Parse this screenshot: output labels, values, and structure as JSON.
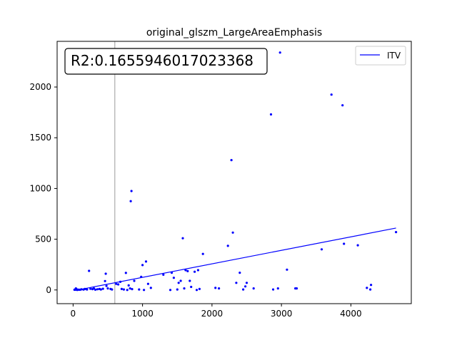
{
  "chart_data": {
    "type": "scatter",
    "title": "original_glszm_LargeAreaEmphasis",
    "xlabel": "",
    "ylabel": "",
    "xlim": [
      -230,
      4870
    ],
    "ylim": [
      -135,
      2450
    ],
    "x_ticks": [
      0,
      1000,
      2000,
      3000,
      4000
    ],
    "y_ticks": [
      0,
      500,
      1000,
      1500,
      2000
    ],
    "grid": false,
    "legend": {
      "placement": "top-right",
      "entries": [
        {
          "label": "ITV",
          "color": "#0000ff"
        }
      ]
    },
    "annotation": "R2:0.1655946017023368",
    "vertical_line": {
      "x": 600,
      "color": "#bbbbbb"
    },
    "fit_line": {
      "name": "ITV",
      "x": [
        30,
        4650
      ],
      "y": [
        -5,
        610
      ],
      "color": "#0000ff"
    },
    "series": [
      {
        "name": "",
        "color": "#0000ff",
        "points": [
          [
            20,
            2
          ],
          [
            30,
            5
          ],
          [
            40,
            15
          ],
          [
            50,
            8
          ],
          [
            60,
            0
          ],
          [
            80,
            3
          ],
          [
            100,
            2
          ],
          [
            120,
            6
          ],
          [
            150,
            4
          ],
          [
            170,
            10
          ],
          [
            200,
            5
          ],
          [
            230,
            188
          ],
          [
            250,
            12
          ],
          [
            280,
            8
          ],
          [
            300,
            15
          ],
          [
            320,
            3
          ],
          [
            350,
            7
          ],
          [
            380,
            10
          ],
          [
            400,
            5
          ],
          [
            430,
            12
          ],
          [
            460,
            88
          ],
          [
            470,
            160
          ],
          [
            480,
            40
          ],
          [
            500,
            15
          ],
          [
            540,
            10
          ],
          [
            560,
            5
          ],
          [
            620,
            60
          ],
          [
            650,
            55
          ],
          [
            680,
            80
          ],
          [
            700,
            10
          ],
          [
            730,
            5
          ],
          [
            760,
            168
          ],
          [
            780,
            0
          ],
          [
            800,
            45
          ],
          [
            820,
            15
          ],
          [
            830,
            875
          ],
          [
            840,
            975
          ],
          [
            850,
            8
          ],
          [
            880,
            90
          ],
          [
            950,
            5
          ],
          [
            980,
            130
          ],
          [
            1000,
            245
          ],
          [
            1020,
            0
          ],
          [
            1050,
            280
          ],
          [
            1080,
            60
          ],
          [
            1120,
            20
          ],
          [
            1300,
            150
          ],
          [
            1400,
            0
          ],
          [
            1420,
            170
          ],
          [
            1450,
            120
          ],
          [
            1500,
            5
          ],
          [
            1520,
            70
          ],
          [
            1550,
            90
          ],
          [
            1580,
            510
          ],
          [
            1600,
            15
          ],
          [
            1620,
            195
          ],
          [
            1650,
            185
          ],
          [
            1680,
            90
          ],
          [
            1700,
            30
          ],
          [
            1750,
            180
          ],
          [
            1780,
            0
          ],
          [
            1800,
            195
          ],
          [
            1820,
            10
          ],
          [
            1870,
            355
          ],
          [
            2050,
            20
          ],
          [
            2100,
            15
          ],
          [
            2230,
            435
          ],
          [
            2280,
            1280
          ],
          [
            2300,
            565
          ],
          [
            2350,
            70
          ],
          [
            2400,
            170
          ],
          [
            2450,
            5
          ],
          [
            2480,
            35
          ],
          [
            2500,
            70
          ],
          [
            2600,
            15
          ],
          [
            2850,
            1730
          ],
          [
            2880,
            5
          ],
          [
            2950,
            15
          ],
          [
            2980,
            2340
          ],
          [
            3080,
            200
          ],
          [
            3200,
            15
          ],
          [
            3220,
            15
          ],
          [
            3580,
            400
          ],
          [
            3720,
            1925
          ],
          [
            3880,
            1820
          ],
          [
            3900,
            455
          ],
          [
            4100,
            440
          ],
          [
            4230,
            20
          ],
          [
            4280,
            5
          ],
          [
            4290,
            50
          ],
          [
            4650,
            570
          ]
        ]
      }
    ]
  }
}
